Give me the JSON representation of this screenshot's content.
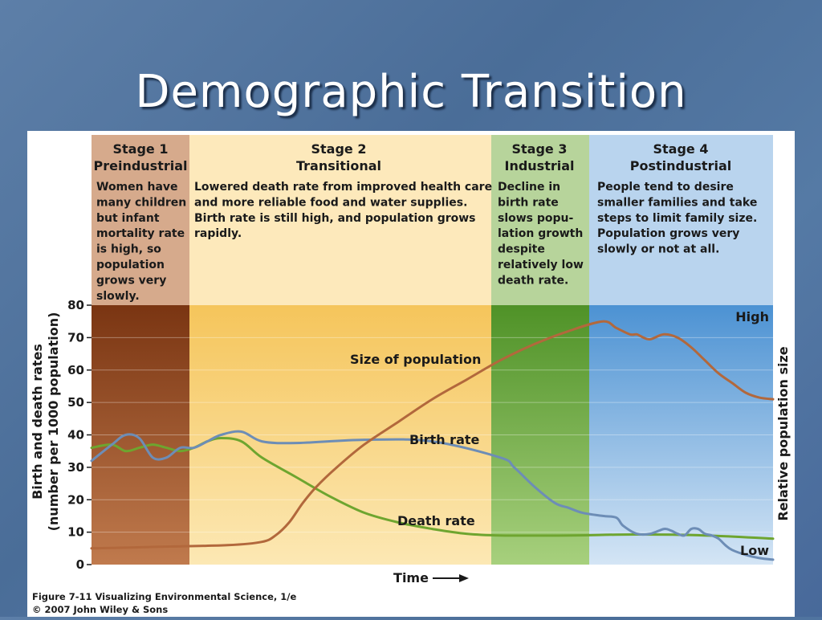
{
  "slide": {
    "title": "Demographic Transition"
  },
  "chart_data": {
    "type": "line",
    "stages": [
      {
        "name": "Stage 1",
        "subtitle": "Preindustrial",
        "description": [
          "Women have",
          "many children",
          "but infant",
          "mortality rate",
          "is high, so",
          "population",
          "grows very",
          "slowly."
        ],
        "header_color": "#d6aa8c",
        "band_color_top": "#7a3512",
        "band_color_bottom": "#c07a4d"
      },
      {
        "name": "Stage 2",
        "subtitle": "Transitional",
        "description": [
          "Lowered death rate from improved health care",
          "and more reliable food and water supplies.",
          "Birth rate is still high, and population grows",
          "rapidly."
        ],
        "header_color": "#fde9bb",
        "band_color_top": "#f5c55b",
        "band_color_bottom": "#fce8b4"
      },
      {
        "name": "Stage 3",
        "subtitle": "Industrial",
        "description": [
          "Decline in",
          "birth rate",
          "slows popu-",
          "lation growth",
          "despite",
          "relatively low",
          "death rate."
        ],
        "header_color": "#b7d49b",
        "band_color_top": "#4f9227",
        "band_color_bottom": "#a7d07d"
      },
      {
        "name": "Stage 4",
        "subtitle": "Postindustrial",
        "description": [
          "People tend to desire",
          "smaller families and take",
          "steps to limit family size.",
          "Population grows very",
          "slowly or not at all."
        ],
        "header_color": "#b9d4ee",
        "band_color_top": "#4c92d3",
        "band_color_bottom": "#d4e5f5"
      }
    ],
    "ylabel_left": [
      "Birth and death rates",
      "(number per 1000 population)"
    ],
    "ylabel_right": "Relative population size",
    "xlabel": "Time",
    "ylim": [
      0,
      80
    ],
    "yticks": [
      0,
      10,
      20,
      30,
      40,
      50,
      60,
      70,
      80
    ],
    "right_axis_labels": {
      "high": "High",
      "low": "Low"
    },
    "series": [
      {
        "name": "Birth rate",
        "color": "#6d8db6",
        "x": [
          0,
          3,
          5,
          7,
          9,
          11,
          13,
          15,
          17,
          19,
          22,
          25,
          30,
          40,
          50,
          60,
          62,
          65,
          68,
          70,
          72,
          75,
          77,
          78,
          80,
          82,
          84,
          85,
          86,
          87,
          88,
          89,
          90,
          91,
          92,
          93,
          94,
          96,
          98,
          100
        ],
        "values": [
          32,
          37,
          40,
          39,
          33,
          33,
          36,
          36,
          38,
          40,
          41,
          38,
          37.5,
          38.5,
          38,
          33,
          30,
          24,
          19,
          17.5,
          16,
          15,
          14.5,
          12,
          9.5,
          9.5,
          11,
          10.5,
          9.5,
          9,
          11,
          11,
          9.5,
          9,
          8,
          6,
          4.5,
          3,
          2,
          1.5
        ]
      },
      {
        "name": "Death rate",
        "color": "#6ea52f",
        "x": [
          0,
          3,
          5,
          7,
          9,
          11,
          13,
          15,
          17,
          19,
          22,
          25,
          30,
          35,
          40,
          45,
          50,
          55,
          60,
          70,
          80,
          90,
          100
        ],
        "values": [
          36,
          37,
          35,
          36,
          37,
          36,
          35,
          36,
          38,
          39,
          38,
          33,
          27,
          21,
          16,
          13,
          11,
          9.5,
          9,
          9,
          9.3,
          9,
          8
        ]
      },
      {
        "name": "Size of population",
        "color": "#b2683c",
        "x": [
          0,
          10,
          20,
          25,
          27,
          29,
          31,
          33,
          36,
          40,
          45,
          50,
          55,
          60,
          65,
          70,
          75,
          77,
          79,
          80,
          81,
          82,
          84,
          86,
          88,
          90,
          92,
          94,
          96,
          98,
          100
        ],
        "values": [
          5,
          5.5,
          6,
          7,
          9,
          13,
          19,
          24,
          30,
          37,
          44,
          51,
          57,
          63,
          68,
          72,
          75,
          73,
          71,
          71,
          70,
          69.5,
          71,
          70,
          67,
          63,
          59,
          56,
          53,
          51.5,
          51
        ]
      }
    ],
    "annotations": {
      "population": "Size of population",
      "birth": "Birth rate",
      "death": "Death rate"
    },
    "grid": true
  },
  "credit": {
    "line1": "Figure 7-11  Visualizing Environmental Science, 1/e",
    "line2": "© 2007 John Wiley & Sons"
  }
}
